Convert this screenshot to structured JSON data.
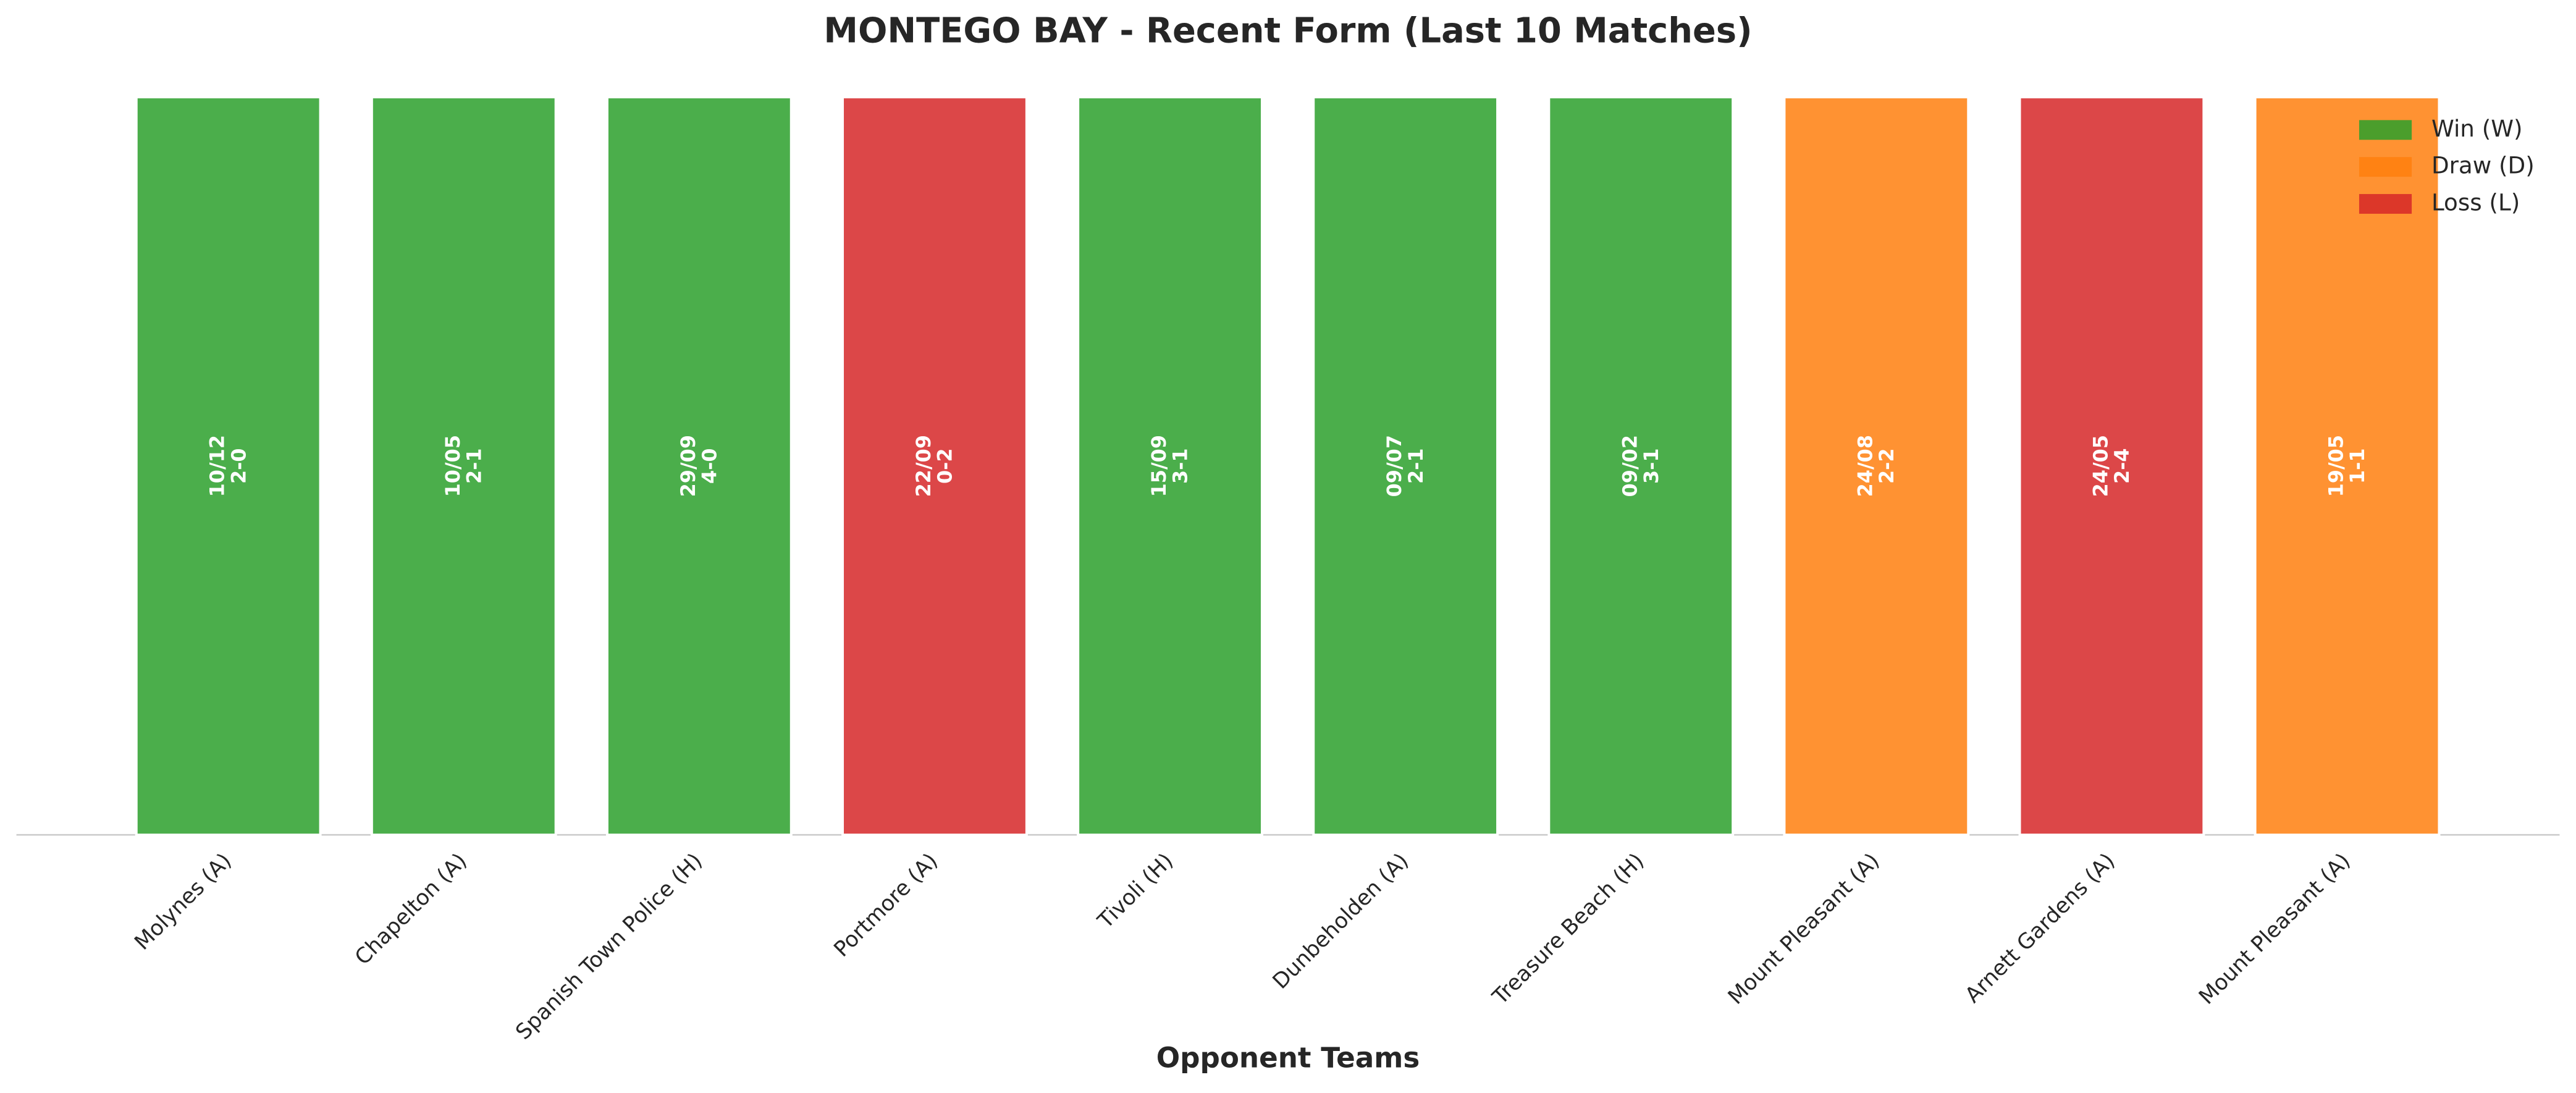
{
  "chart_data": {
    "type": "bar",
    "title": "MONTEGO BAY - Recent Form (Last 10 Matches)",
    "x_label": "Opponent Teams",
    "categories": [
      "Molynes (A)",
      "Chapelton (A)",
      "Spanish Town Police (H)",
      "Portmore (A)",
      "Tivoli (H)",
      "Dunbeholden (A)",
      "Treasure Beach (H)",
      "Mount Pleasant (A)",
      "Arnett Gardens (A)",
      "Mount Pleasant (A)"
    ],
    "values": [
      1,
      1,
      1,
      1,
      1,
      1,
      1,
      1,
      1,
      1
    ],
    "dates": [
      "10/12",
      "10/05",
      "29/09",
      "22/09",
      "15/09",
      "09/07",
      "09/02",
      "24/08",
      "24/05",
      "19/05"
    ],
    "scores": [
      "2-0",
      "2-1",
      "4-0",
      "0-2",
      "3-1",
      "2-1",
      "3-1",
      "2-2",
      "2-4",
      "1-1"
    ],
    "bar_colors": [
      "#2ca02c",
      "#2ca02c",
      "#2ca02c",
      "#d62728",
      "#2ca02c",
      "#2ca02c",
      "#2ca02c",
      "#ff7f0e",
      "#d62728",
      "#ff7f0e"
    ],
    "ylim": [
      0,
      1
    ],
    "legend": {
      "position": "upper right",
      "entries": [
        {
          "name": "Win (W)",
          "color": "#2ca02c"
        },
        {
          "name": "Draw (D)",
          "color": "#ff7f0e"
        },
        {
          "name": "Loss (L)",
          "color": "#d62728"
        }
      ]
    }
  }
}
